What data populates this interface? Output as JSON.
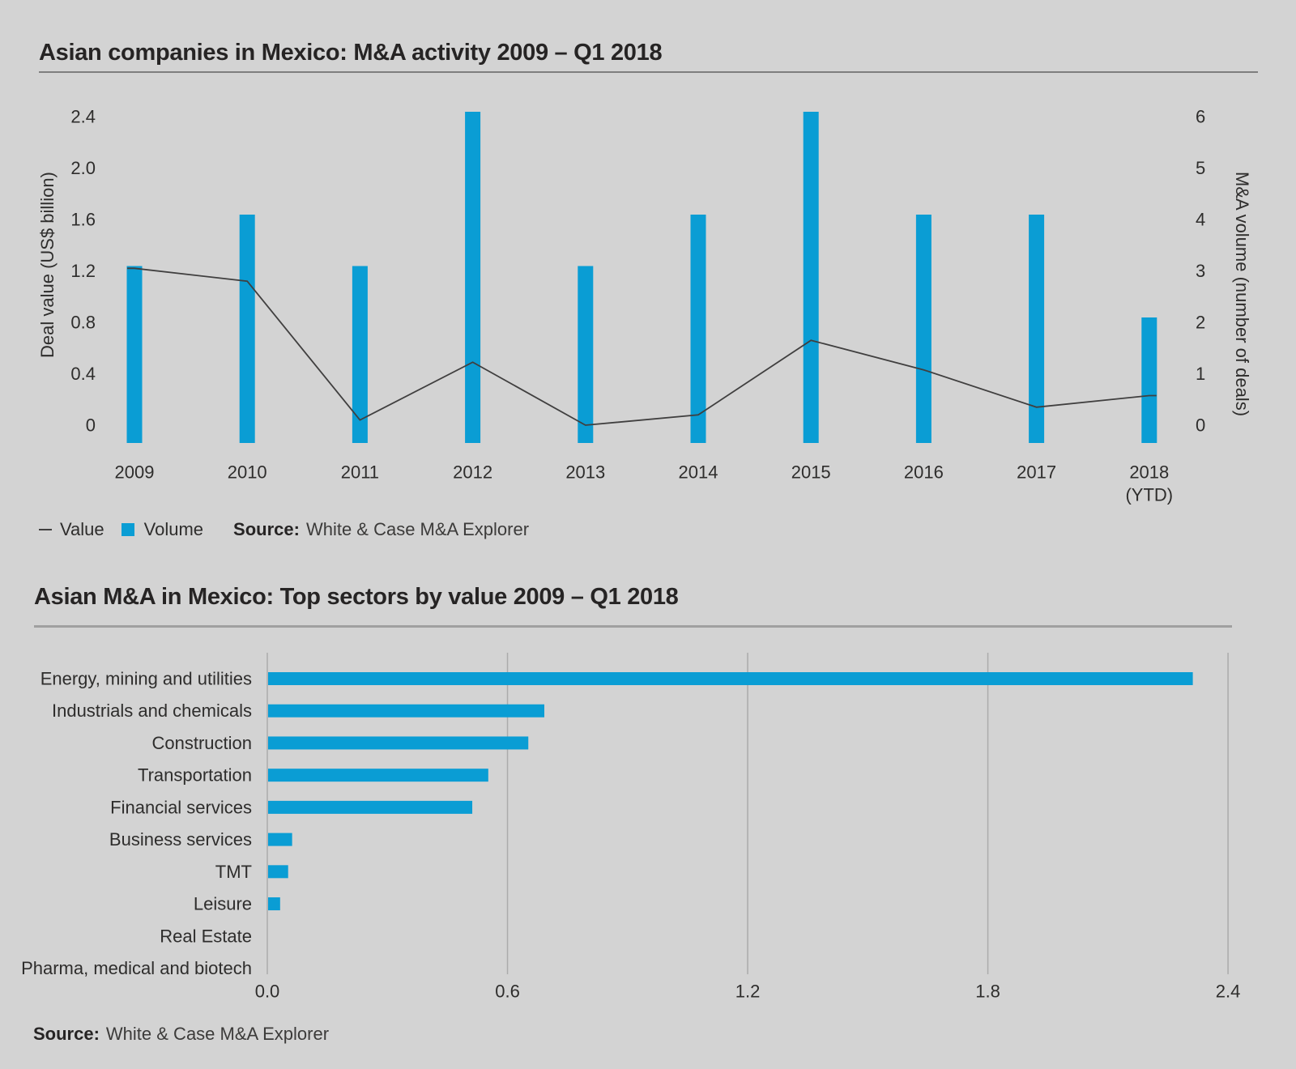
{
  "page": {
    "background": "#d3d3d3"
  },
  "colors": {
    "bar": "#0a9dd4",
    "line": "#403f3f",
    "grid": "#ababab",
    "text": "#2e2d2c",
    "rule1": "#7e7e7e",
    "rule2": "#a0a0a0"
  },
  "chart_data": [
    {
      "id": "ma-activity",
      "type": "bar+line combo",
      "title": "Asian companies in Mexico: M&A activity 2009 – Q1 2018",
      "categories": [
        "2009",
        "2010",
        "2011",
        "2012",
        "2013",
        "2014",
        "2015",
        "2016",
        "2017",
        "2018"
      ],
      "last_category_note": "(YTD)",
      "series": [
        {
          "name": "Value",
          "type": "line",
          "axis": "left",
          "values": [
            1.22,
            1.12,
            0.04,
            0.49,
            0.0,
            0.08,
            0.66,
            0.43,
            0.14,
            0.23
          ]
        },
        {
          "name": "Volume",
          "type": "bar",
          "axis": "right",
          "values": [
            3,
            4,
            3,
            6,
            3,
            4,
            6,
            4,
            4,
            2
          ]
        }
      ],
      "left_axis": {
        "title": "Deal value (US$ billion)",
        "tick_labels": [
          "0",
          "0.4",
          "0.8",
          "1.2",
          "1.6",
          "2.0",
          "2.4"
        ],
        "tick_values": [
          0,
          0.4,
          0.8,
          1.2,
          1.6,
          2.0,
          2.4
        ],
        "range": [
          0,
          2.4
        ]
      },
      "right_axis": {
        "title": "M&A volume (number of deals)",
        "tick_labels": [
          "0",
          "1",
          "2",
          "3",
          "4",
          "5",
          "6"
        ],
        "tick_values": [
          0,
          1,
          2,
          3,
          4,
          5,
          6
        ],
        "range": [
          0,
          6
        ]
      },
      "grid": "off",
      "legend_position": "bottom-left",
      "source_label": "Source:",
      "source": "White & Case M&A Explorer"
    },
    {
      "id": "top-sectors",
      "type": "bar",
      "orientation": "horizontal",
      "title": "Asian M&A in Mexico: Top sectors by value 2009 – Q1 2018",
      "categories": [
        "Energy, mining and utilities",
        "Industrials and chemicals",
        "Construction",
        "Transportation",
        "Financial services",
        "Business services",
        "TMT",
        "Leisure",
        "Real Estate",
        "Pharma, medical and biotech"
      ],
      "values": [
        2.31,
        0.69,
        0.65,
        0.55,
        0.51,
        0.06,
        0.05,
        0.03,
        0.0,
        0.0
      ],
      "x_axis": {
        "tick_labels": [
          "0.0",
          "0.6",
          "1.2",
          "1.8",
          "2.4"
        ],
        "tick_values": [
          0,
          0.6,
          1.2,
          1.8,
          2.4
        ],
        "range": [
          0,
          2.4
        ]
      },
      "grid": "vertical",
      "source_label": "Source:",
      "source": "White & Case M&A Explorer"
    }
  ]
}
